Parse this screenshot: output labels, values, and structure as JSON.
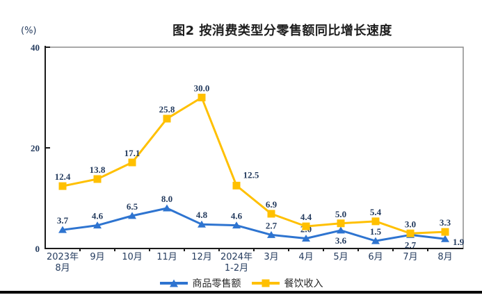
{
  "chart_data": {
    "type": "line",
    "title": "图2 按消费类型分零售额同比增长速度",
    "unit_label": "(%)",
    "categories": [
      "2023年\n8月",
      "9月",
      "10月",
      "11月",
      "12月",
      "2024年\n1-2月",
      "3月",
      "4月",
      "5月",
      "6月",
      "7月",
      "8月"
    ],
    "series": [
      {
        "name": "商品零售额",
        "color": "#2E74D0",
        "marker": "triangle",
        "values": [
          3.7,
          4.6,
          6.5,
          8.0,
          4.8,
          4.6,
          2.7,
          2.0,
          3.6,
          1.5,
          2.7,
          1.9
        ],
        "label_pos": [
          "above",
          "above",
          "above",
          "above",
          "above",
          "above",
          "above",
          "above",
          "below",
          "above",
          "below",
          "right"
        ]
      },
      {
        "name": "餐饮收入",
        "color": "#FFC000",
        "marker": "square",
        "values": [
          12.4,
          13.8,
          17.1,
          25.8,
          30.0,
          12.5,
          6.9,
          4.4,
          5.0,
          5.4,
          3.0,
          3.3
        ],
        "label_pos": [
          "above",
          "above",
          "above",
          "above",
          "above",
          "above-right",
          "above",
          "above",
          "above",
          "above",
          "above",
          "above"
        ]
      }
    ],
    "ylim": [
      0,
      40
    ],
    "yticks": [
      0,
      20,
      40
    ],
    "grid": false,
    "legend_position": "bottom",
    "axis_text_color": "#243b5e",
    "plot_border_color": "#8c8c8c",
    "axis_line_color": "#1a1a1a"
  }
}
